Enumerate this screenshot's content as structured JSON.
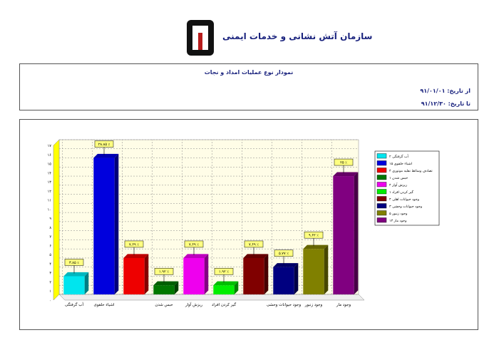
{
  "header": {
    "org_name": "سازمان آتش نشانی و خدمات ایمنی",
    "report_title": "نمودار نوع عملیات امداد و نجات",
    "from_label": "از تاریخ:",
    "from_date": "۹۱/۰۱/۰۱",
    "to_label": "تا تاریخ:",
    "to_date": "۹۱/۱۲/۳۰"
  },
  "colors": {
    "brand": "#1a237e",
    "logo": "#b71c1c",
    "wall": "#fffde7",
    "label_bg": "#ffff80"
  },
  "chart_data": {
    "type": "bar",
    "ylim": [
      0,
      17
    ],
    "yticks": [
      "۰",
      "۱",
      "۲",
      "۳",
      "۴",
      "۵",
      "۶",
      "۷",
      "۸",
      "۹",
      "۱۰",
      "۱۱",
      "۱۲",
      "۱۳",
      "۱۴",
      "۱۵",
      "۱۶",
      "۱۷"
    ],
    "grid": true,
    "legend_position": "right",
    "series": [
      {
        "category": "آب گرفتگی",
        "legend": "آب گرفتگی ۲",
        "value": 2,
        "pct": "۳.۸۵ ٪",
        "color": "#00e5ee"
      },
      {
        "category": "اشیاء حلقوی",
        "legend": "اشیاء حلقوی ۱۵",
        "value": 15,
        "pct": "۲۸.۸۵ ٪",
        "color": "#0000dd"
      },
      {
        "category": "",
        "legend": "تصادف وسائط نقلیه موتوری ۴",
        "value": 4,
        "pct": "۷.۶۹ ٪",
        "color": "#ee0000"
      },
      {
        "category": "حبس شدن",
        "legend": "حبس شدن ۱",
        "value": 1,
        "pct": "۱.۹۲ ٪",
        "color": "#007700"
      },
      {
        "category": "ریزش آوار",
        "legend": "ریزش آوار ۴",
        "value": 4,
        "pct": "۷.۶۹ ٪",
        "color": "#ee00ee"
      },
      {
        "category": "گیر کردن افراد",
        "legend": "گیر کردن افراد ۱",
        "value": 1,
        "pct": "۱.۹۲ ٪",
        "color": "#00ee00"
      },
      {
        "category": "",
        "legend": "وجود حیوانات اهلی ۴",
        "value": 4,
        "pct": "۷.۶۹ ٪",
        "color": "#800000"
      },
      {
        "category": "وجود حیوانات وحشی",
        "legend": "وجود حیوانات وحشی ۳",
        "value": 3,
        "pct": "۵.۷۷ ٪",
        "color": "#000080"
      },
      {
        "category": "وجود زنبور",
        "legend": "وجود زنبور ۵",
        "value": 5,
        "pct": "۹.۶۲ ٪",
        "color": "#808000"
      },
      {
        "category": "وجود مار",
        "legend": "وجود مار ۱۳",
        "value": 13,
        "pct": "۲۵ ٪",
        "color": "#800080"
      }
    ]
  }
}
